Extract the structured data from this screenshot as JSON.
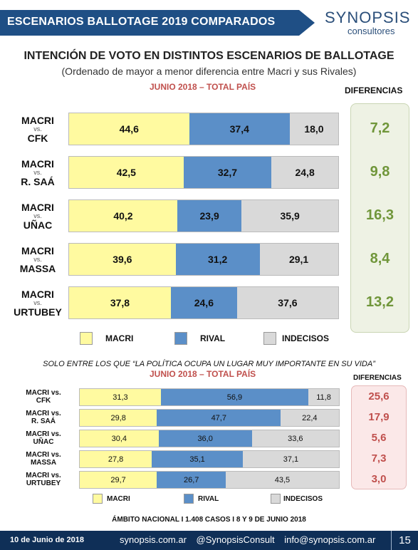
{
  "header": {
    "title": "ESCENARIOS BALLOTAGE 2019 COMPARADOS",
    "logo_name": "SYNOPSIS",
    "logo_sub": "consultores"
  },
  "title": "INTENCIÓN DE VOTO EN DISTINTOS ESCENARIOS DE BALLOTAGE",
  "subtitle": "(Ordenado de mayor a menor diferencia entre Macri y sus Rivales)",
  "period": "JUNIO 2018 – TOTAL PAÍS",
  "diff_header": "DIFERENCIAS",
  "colors": {
    "macri": "#fffaa0",
    "rival": "#5b8fc8",
    "indecisos": "#d9d9d9",
    "diff1": "#70963a",
    "diff2": "#c0504d"
  },
  "legend": {
    "macri": "MACRI",
    "rival": "RIVAL",
    "indecisos": "INDECISOS"
  },
  "chart_data": [
    {
      "type": "bar",
      "stacked": true,
      "orientation": "horizontal",
      "rows": [
        {
          "line1": "MACRI",
          "vs": "vs.",
          "line2": "CFK",
          "macri": "44,6",
          "rival": "37,4",
          "indecisos": "18,0",
          "diff": "7,2"
        },
        {
          "line1": "MACRI",
          "vs": "vs.",
          "line2": "R. SAÁ",
          "macri": "42,5",
          "rival": "32,7",
          "indecisos": "24,8",
          "diff": "9,8"
        },
        {
          "line1": "MACRI",
          "vs": "vs.",
          "line2": "UÑAC",
          "macri": "40,2",
          "rival": "23,9",
          "indecisos": "35,9",
          "diff": "16,3"
        },
        {
          "line1": "MACRI",
          "vs": "vs.",
          "line2": "MASSA",
          "macri": "39,6",
          "rival": "31,2",
          "indecisos": "29,1",
          "diff": "8,4"
        },
        {
          "line1": "MACRI",
          "vs": "vs.",
          "line2": "URTUBEY",
          "macri": "37,8",
          "rival": "24,6",
          "indecisos": "37,6",
          "diff": "13,2"
        }
      ]
    },
    {
      "type": "bar",
      "stacked": true,
      "orientation": "horizontal",
      "title": "SOLO ENTRE LOS QUE “LA POLÍTICA OCUPA UN LUGAR MUY IMPORTANTE EN SU VIDA”",
      "period": "JUNIO 2018 – TOTAL PAÍS",
      "diff_header": "DIFERENCIAS",
      "rows": [
        {
          "line1": "MACRI vs.",
          "line2": "CFK",
          "macri": "31,3",
          "rival": "56,9",
          "indecisos": "11,8",
          "diff": "25,6"
        },
        {
          "line1": "MACRI vs.",
          "line2": "R. SAÁ",
          "macri": "29,8",
          "rival": "47,7",
          "indecisos": "22,4",
          "diff": "17,9"
        },
        {
          "line1": "MACRI vs.",
          "line2": "UÑAC",
          "macri": "30,4",
          "rival": "36,0",
          "indecisos": "33,6",
          "diff": "5,6"
        },
        {
          "line1": "MACRI vs.",
          "line2": "MASSA",
          "macri": "27,8",
          "rival": "35,1",
          "indecisos": "37,1",
          "diff": "7,3"
        },
        {
          "line1": "MACRI vs.",
          "line2": "URTUBEY",
          "macri": "29,7",
          "rival": "26,7",
          "indecisos": "43,5",
          "diff": "3,0"
        }
      ]
    }
  ],
  "footnote": "ÁMBITO NACIONAL I 1.408 CASOS I  8 Y 9 DE JUNIO 2018",
  "footer": {
    "date": "10 de Junio de 2018",
    "site": "synopsis.com.ar",
    "twitter": "@SynopsisConsult",
    "email": "info@synopsis.com.ar",
    "page": "15"
  }
}
